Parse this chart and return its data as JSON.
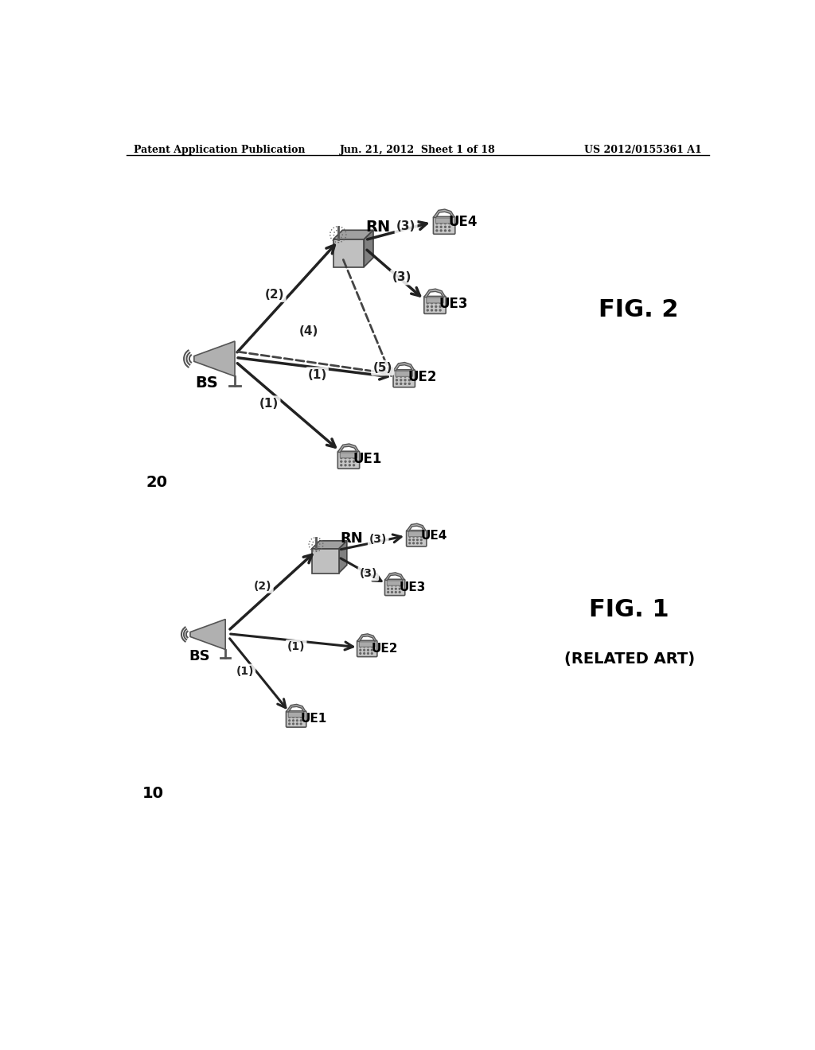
{
  "header_left": "Patent Application Publication",
  "header_center": "Jun. 21, 2012  Sheet 1 of 18",
  "header_right": "US 2012/0155361 A1",
  "fig1_label": "FIG. 1",
  "fig1_sublabel": "(RELATED ART)",
  "fig1_number": "10",
  "fig2_label": "FIG. 2",
  "fig2_number": "20",
  "bg_color": "#ffffff",
  "text_color": "#000000"
}
